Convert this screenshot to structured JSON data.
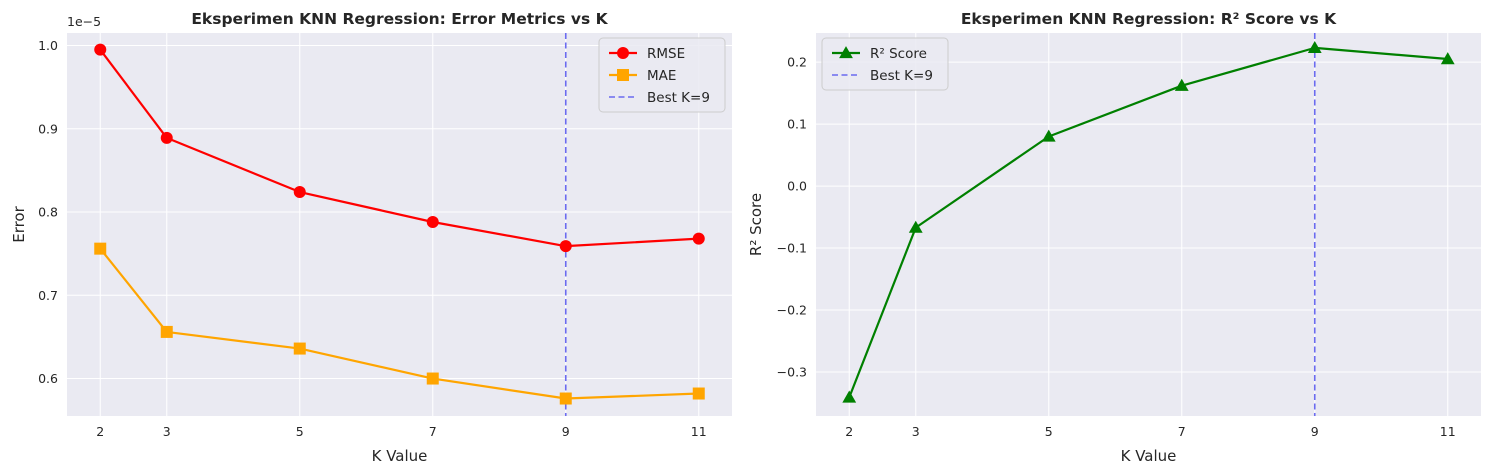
{
  "chart_data": [
    {
      "type": "line",
      "title": "Eksperimen KNN Regression: Error Metrics vs K",
      "xlabel": "K Value",
      "ylabel": "Error",
      "y_offset_label": "1e−5",
      "x": [
        2,
        3,
        5,
        7,
        9,
        11
      ],
      "x_ticks": [
        "2",
        "3",
        "5",
        "7",
        "9",
        "11"
      ],
      "y_ticks": [
        0.6,
        0.7,
        0.8,
        0.9,
        1.0
      ],
      "y_tick_labels": [
        "0.6",
        "0.7",
        "0.8",
        "0.9",
        "1.0"
      ],
      "xlim": [
        1.5,
        11.5
      ],
      "ylim": [
        0.555,
        1.015
      ],
      "grid": true,
      "legend": "top-right",
      "series": [
        {
          "name": "RMSE",
          "values": [
            0.995,
            0.889,
            0.824,
            0.788,
            0.759,
            0.768
          ],
          "color": "#ff0000",
          "marker": "circle"
        },
        {
          "name": "MAE",
          "values": [
            0.756,
            0.656,
            0.636,
            0.6,
            0.576,
            0.582
          ],
          "color": "#ffa500",
          "marker": "square"
        }
      ],
      "reference_line": {
        "name": "Best K=9",
        "x": 9,
        "color": "#6b6bf0",
        "style": "dashed"
      }
    },
    {
      "type": "line",
      "title": "Eksperimen KNN Regression: R² Score vs K",
      "xlabel": "K Value",
      "ylabel": "R² Score",
      "x": [
        2,
        3,
        5,
        7,
        9,
        11
      ],
      "x_ticks": [
        "2",
        "3",
        "5",
        "7",
        "9",
        "11"
      ],
      "y_ticks": [
        -0.3,
        -0.2,
        -0.1,
        0.0,
        0.1,
        0.2
      ],
      "y_tick_labels": [
        "−0.3",
        "−0.2",
        "−0.1",
        "0.0",
        "0.1",
        "0.2"
      ],
      "xlim": [
        1.5,
        11.5
      ],
      "ylim": [
        -0.371,
        0.247
      ],
      "grid": true,
      "legend": "top-left",
      "series": [
        {
          "name": "R² Score",
          "values": [
            -0.341,
            -0.067,
            0.08,
            0.162,
            0.223,
            0.205
          ],
          "color": "#008000",
          "marker": "triangle"
        }
      ],
      "reference_line": {
        "name": "Best K=9",
        "x": 9,
        "color": "#6b6bf0",
        "style": "dashed"
      }
    }
  ]
}
